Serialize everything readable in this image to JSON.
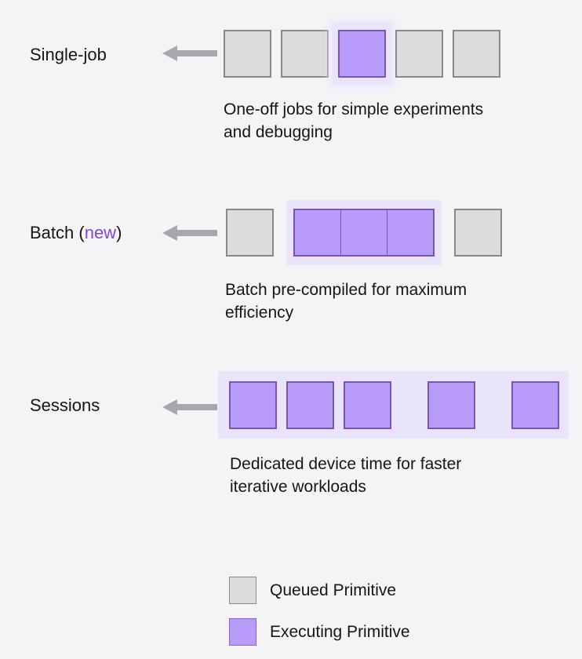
{
  "colors": {
    "background": "#f5f3f6",
    "queued_fill": "#dcdbdd",
    "queued_border": "#8b888d",
    "executing_fill": "#b89cfa",
    "executing_border": "#7a55ad",
    "halo": "#e9e4fa",
    "arrow": "#a9a7ac",
    "text": "#161616",
    "highlight": "#7c45e8"
  },
  "rows": [
    {
      "id": "single-job",
      "label": {
        "prefix": "Single-job",
        "highlight": "",
        "suffix": ""
      },
      "description": [
        "One-off jobs for simple experiments",
        "and debugging"
      ],
      "track": {
        "groups": [
          {
            "type": "square",
            "state": "queued"
          },
          {
            "type": "square",
            "state": "queued"
          },
          {
            "type": "square",
            "state": "executing",
            "halo": true
          },
          {
            "type": "square",
            "state": "queued"
          },
          {
            "type": "square",
            "state": "queued"
          }
        ]
      }
    },
    {
      "id": "batch",
      "label": {
        "prefix": "Batch (",
        "highlight": "new",
        "suffix": ")"
      },
      "description": [
        "Batch pre-compiled for maximum",
        "efficiency"
      ],
      "track": {
        "groups": [
          {
            "type": "square",
            "state": "queued"
          },
          {
            "type": "batch",
            "count": 3,
            "halo": true
          },
          {
            "type": "square",
            "state": "queued"
          }
        ]
      }
    },
    {
      "id": "sessions",
      "label": {
        "prefix": "Sessions",
        "highlight": "",
        "suffix": ""
      },
      "description": [
        "Dedicated device time for faster",
        "iterative workloads"
      ],
      "track": {
        "wrapped": true,
        "groups": [
          {
            "type": "square",
            "state": "executing"
          },
          {
            "type": "square",
            "state": "executing"
          },
          {
            "type": "square",
            "state": "executing"
          },
          {
            "type": "square",
            "state": "executing",
            "gap": "large"
          },
          {
            "type": "square",
            "state": "executing",
            "gap": "large"
          }
        ]
      }
    }
  ],
  "legend": {
    "items": [
      {
        "state": "queued",
        "label": "Queued Primitive"
      },
      {
        "state": "executing",
        "label": "Executing Primitive"
      }
    ]
  }
}
